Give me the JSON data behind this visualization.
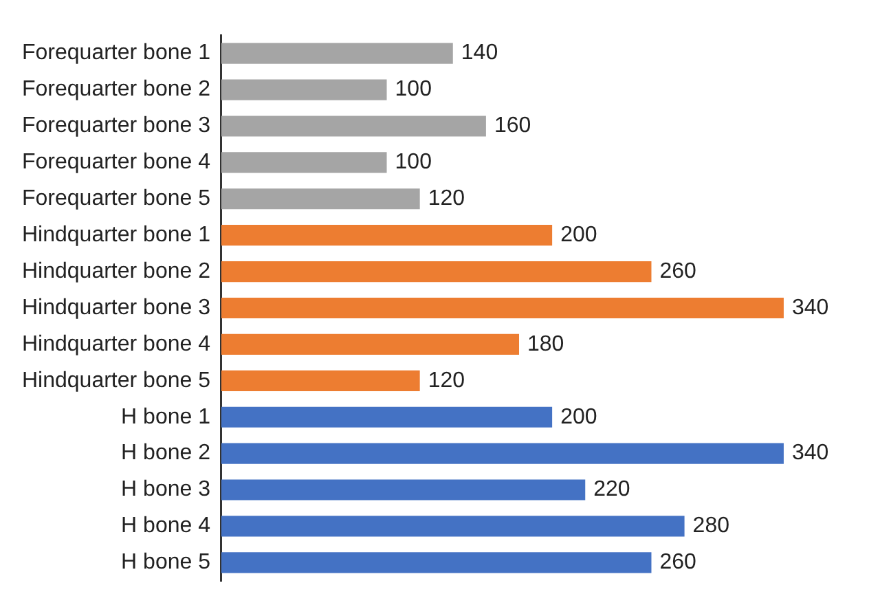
{
  "chart_data": {
    "type": "bar",
    "orientation": "horizontal",
    "categories": [
      "Forequarter bone 1",
      "Forequarter bone 2",
      "Forequarter bone 3",
      "Forequarter bone 4",
      "Forequarter bone 5",
      "Hindquarter bone 1",
      "Hindquarter bone 2",
      "Hindquarter bone 3",
      "Hindquarter bone 4",
      "Hindquarter bone 5",
      "H bone 1",
      "H bone 2",
      "H bone 3",
      "H bone 4",
      "H bone 5"
    ],
    "values": [
      140,
      100,
      160,
      100,
      120,
      200,
      260,
      340,
      180,
      120,
      200,
      340,
      220,
      280,
      260
    ],
    "colors": [
      "#a5a5a5",
      "#a5a5a5",
      "#a5a5a5",
      "#a5a5a5",
      "#a5a5a5",
      "#ed7d31",
      "#ed7d31",
      "#ed7d31",
      "#ed7d31",
      "#ed7d31",
      "#4472c4",
      "#4472c4",
      "#4472c4",
      "#4472c4",
      "#4472c4"
    ],
    "data_labels": true
  }
}
